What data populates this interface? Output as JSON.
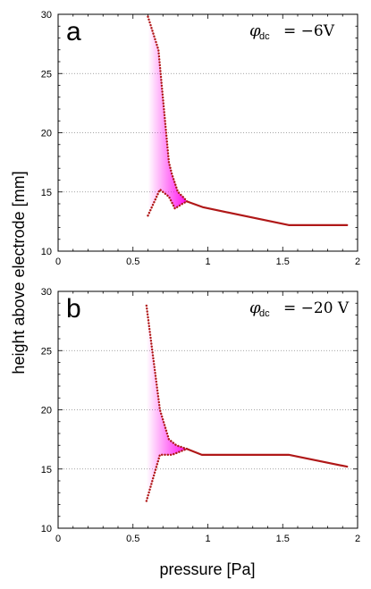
{
  "axes": {
    "xlabel": "pressure [Pa]",
    "ylabel": "height above electrode [mm]"
  },
  "chart_data": [
    {
      "type": "line",
      "panel": "a",
      "annotation": {
        "symbol": "φ",
        "subscript": "dc",
        "value": "= −6V"
      },
      "xlim": [
        0,
        2
      ],
      "ylim": [
        10,
        30
      ],
      "x_ticks": [
        "0",
        "0.5",
        "1",
        "1.5",
        "2"
      ],
      "y_ticks": [
        "10",
        "15",
        "20",
        "25",
        "30"
      ],
      "grid": "horizontal dotted",
      "series": [
        {
          "style": "dotted",
          "x": [
            0.6,
            0.67,
            0.74,
            0.76,
            0.8,
            0.84,
            0.86
          ],
          "y": [
            29.8,
            27.0,
            17.5,
            16.5,
            15.0,
            14.5,
            14.2
          ]
        },
        {
          "style": "dotted",
          "x": [
            0.6,
            0.68,
            0.74,
            0.78,
            0.83,
            0.86
          ],
          "y": [
            13.0,
            15.2,
            14.6,
            13.6,
            14.0,
            14.2
          ]
        },
        {
          "style": "solid",
          "x": [
            0.86,
            0.97,
            1.54,
            1.93
          ],
          "y": [
            14.2,
            13.7,
            12.2,
            12.2
          ]
        }
      ]
    },
    {
      "type": "line",
      "panel": "b",
      "annotation": {
        "symbol": "φ",
        "subscript": "dc",
        "value": "= −20 V"
      },
      "xlim": [
        0,
        2
      ],
      "ylim": [
        10,
        30
      ],
      "x_ticks": [
        "0",
        "0.5",
        "1",
        "1.5",
        "2"
      ],
      "y_ticks": [
        "10",
        "15",
        "20",
        "25",
        "30"
      ],
      "grid": "horizontal dotted",
      "series": [
        {
          "style": "dotted",
          "x": [
            0.59,
            0.68,
            0.74,
            0.79,
            0.86
          ],
          "y": [
            28.8,
            20.0,
            17.5,
            17.0,
            16.7
          ]
        },
        {
          "style": "dotted",
          "x": [
            0.59,
            0.68,
            0.76,
            0.86
          ],
          "y": [
            12.3,
            16.2,
            16.2,
            16.7
          ]
        },
        {
          "style": "solid",
          "x": [
            0.86,
            0.96,
            1.54,
            1.93
          ],
          "y": [
            16.7,
            16.2,
            16.2,
            15.2
          ]
        }
      ]
    }
  ],
  "colors": {
    "curve": "#b01818",
    "fill": "#ff00ee",
    "grid": "#888888"
  }
}
